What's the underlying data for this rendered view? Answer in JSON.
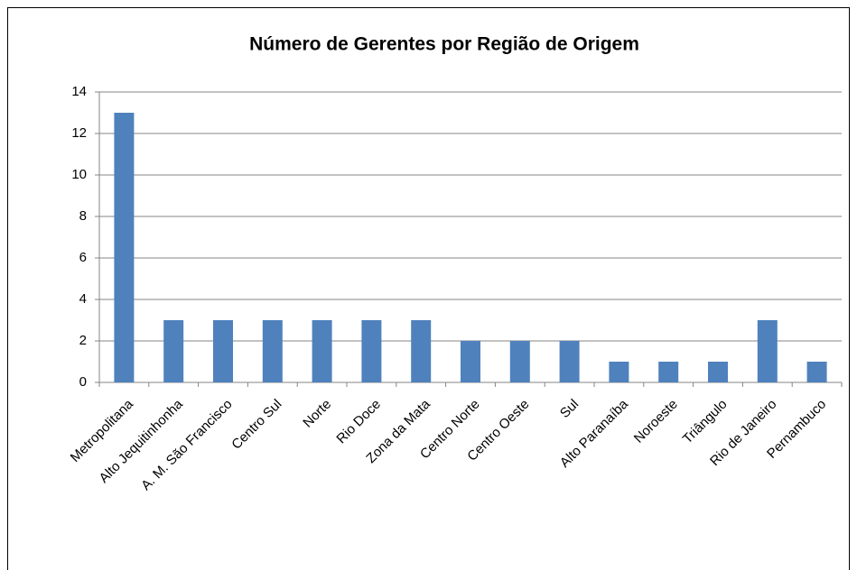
{
  "chart_data": {
    "type": "bar",
    "title": "Número de Gerentes por Região de Origem",
    "categories": [
      "Metropolitana",
      "Alto Jequitinhonha",
      "A. M. São Francisco",
      "Centro Sul",
      "Norte",
      "Rio Doce",
      "Zona da Mata",
      "Centro Norte",
      "Centro Oeste",
      "Sul",
      "Alto Paranaíba",
      "Noroeste",
      "Triângulo",
      "Rio de Janeiro",
      "Pernambuco"
    ],
    "values": [
      13,
      3,
      3,
      3,
      3,
      3,
      3,
      2,
      2,
      2,
      1,
      1,
      1,
      3,
      1
    ],
    "color": "#4f81bd",
    "ylim": [
      0,
      14
    ],
    "yticks": [
      0,
      2,
      4,
      6,
      8,
      10,
      12,
      14
    ],
    "grid": true
  }
}
